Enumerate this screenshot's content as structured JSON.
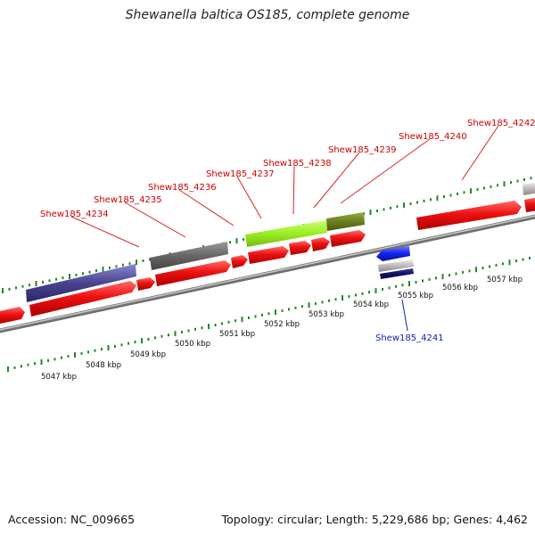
{
  "title": "Shewanella baltica OS185, complete genome",
  "footer": {
    "accession": "Accession: NC_009665",
    "topology": "Topology: circular; Length: 5,229,686 bp; Genes: 4,462"
  },
  "colors": {
    "forward_cds": "#ee1111",
    "reverse_cds": "#1122ee",
    "label_forward": "#cc0000",
    "label_reverse": "#1122aa",
    "tick": "#228822",
    "backbone": "#8a8a8a"
  },
  "scale_labels": [
    "5047 kbp",
    "5048 kbp",
    "5049 kbp",
    "5050 kbp",
    "5051 kbp",
    "5052 kbp",
    "5053 kbp",
    "5054 kbp",
    "5055 kbp",
    "5056 kbp",
    "5057 kbp"
  ],
  "gene_labels": [
    {
      "name": "Shew185_4234",
      "strand": "forward"
    },
    {
      "name": "Shew185_4235",
      "strand": "forward"
    },
    {
      "name": "Shew185_4236",
      "strand": "forward"
    },
    {
      "name": "Shew185_4237",
      "strand": "forward"
    },
    {
      "name": "Shew185_4238",
      "strand": "forward"
    },
    {
      "name": "Shew185_4239",
      "strand": "forward"
    },
    {
      "name": "Shew185_4240",
      "strand": "forward"
    },
    {
      "name": "Shew185_4241",
      "strand": "reverse"
    },
    {
      "name": "Shew185_4242",
      "strand": "forward"
    }
  ]
}
